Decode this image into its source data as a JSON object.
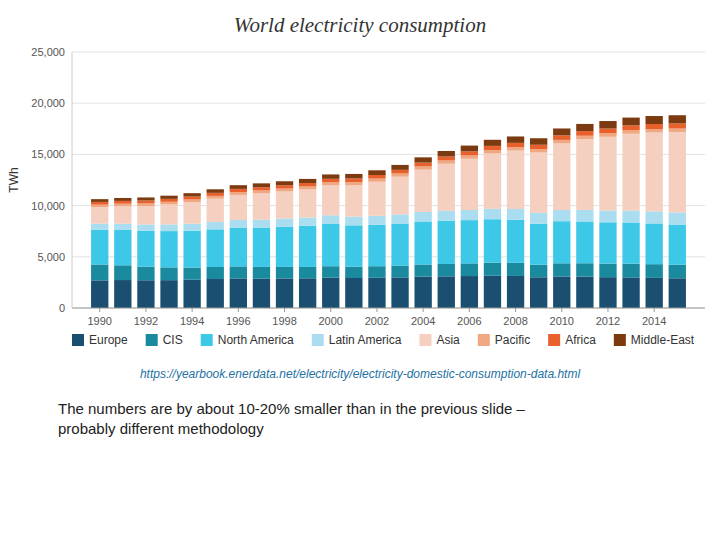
{
  "chart_data": {
    "type": "bar",
    "stacked": true,
    "title": "World electricity consumption",
    "y_label": "TWh",
    "annotations": [
      "https://yearbook.enerdata.net/electricity/electricity-domestic-consumption-data.html",
      "The numbers are by about 10-20% smaller than in the previous slide –\nprobably different methodology"
    ],
    "x": [
      1990,
      1991,
      1992,
      1993,
      1994,
      1995,
      1996,
      1997,
      1998,
      1999,
      2000,
      2001,
      2002,
      2003,
      2004,
      2005,
      2006,
      2007,
      2008,
      2009,
      2010,
      2011,
      2012,
      2013,
      2014,
      2015
    ],
    "xlim": [
      1988.8,
      2016.2
    ],
    "xticks": [
      1990,
      1992,
      1994,
      1996,
      1998,
      2000,
      2002,
      2004,
      2006,
      2008,
      2010,
      2012,
      2014
    ],
    "ylim": [
      0,
      25000
    ],
    "yticks": [
      0,
      {
        "value": 5000,
        "label": "5,000"
      },
      {
        "value": 10000,
        "label": "10,000"
      },
      {
        "value": 15000,
        "label": "15,000"
      },
      {
        "value": 20000,
        "label": "20,000"
      },
      {
        "value": 25000,
        "label": "25,000"
      }
    ],
    "grid": true,
    "legend": "bottom",
    "series": [
      {
        "name": "Europe",
        "color": "#1b4f72",
        "values": [
          2700,
          2730,
          2710,
          2720,
          2760,
          2830,
          2890,
          2860,
          2890,
          2900,
          2960,
          2930,
          2950,
          2990,
          3060,
          3090,
          3120,
          3150,
          3130,
          3000,
          3080,
          3060,
          3010,
          2990,
          2940,
          2900
        ]
      },
      {
        "name": "CIS",
        "color": "#1a8a9e",
        "values": [
          1550,
          1440,
          1330,
          1250,
          1190,
          1175,
          1175,
          1150,
          1120,
          1110,
          1120,
          1105,
          1130,
          1150,
          1190,
          1210,
          1240,
          1270,
          1280,
          1225,
          1285,
          1310,
          1330,
          1340,
          1340,
          1320
        ]
      },
      {
        "name": "North America",
        "color": "#3ec8e8",
        "values": [
          3400,
          3450,
          3490,
          3540,
          3600,
          3680,
          3790,
          3850,
          3940,
          4020,
          4130,
          4040,
          4060,
          4110,
          4200,
          4230,
          4220,
          4250,
          4210,
          4010,
          4110,
          4080,
          4030,
          4020,
          3980,
          3930
        ]
      },
      {
        "name": "Latin America",
        "color": "#aaddf0",
        "values": [
          590,
          610,
          630,
          650,
          680,
          710,
          740,
          760,
          790,
          810,
          840,
          850,
          860,
          890,
          930,
          960,
          990,
          1020,
          1050,
          1050,
          1100,
          1130,
          1150,
          1170,
          1180,
          1190
        ]
      },
      {
        "name": "Asia",
        "color": "#f5cfc0",
        "values": [
          1600,
          1700,
          1800,
          1950,
          2100,
          2280,
          2450,
          2580,
          2640,
          2740,
          2930,
          3080,
          3330,
          3680,
          4130,
          4600,
          5000,
          5400,
          5700,
          5900,
          6500,
          6900,
          7200,
          7500,
          7700,
          7850
        ]
      },
      {
        "name": "Pacific",
        "color": "#f0a882",
        "values": [
          250,
          255,
          260,
          263,
          267,
          272,
          278,
          282,
          287,
          292,
          297,
          302,
          307,
          312,
          317,
          322,
          327,
          332,
          337,
          332,
          342,
          345,
          342,
          339,
          337,
          335
        ]
      },
      {
        "name": "Africa",
        "color": "#e8602c",
        "values": [
          270,
          275,
          280,
          285,
          290,
          300,
          310,
          315,
          320,
          330,
          340,
          345,
          350,
          360,
          375,
          385,
          400,
          410,
          420,
          425,
          440,
          450,
          465,
          480,
          490,
          500
        ]
      },
      {
        "name": "Middle-East",
        "color": "#7b3a10",
        "values": [
          270,
          285,
          295,
          310,
          325,
          345,
          360,
          375,
          390,
          405,
          425,
          440,
          460,
          480,
          510,
          535,
          565,
          595,
          625,
          635,
          675,
          700,
          730,
          755,
          780,
          800
        ]
      }
    ]
  }
}
